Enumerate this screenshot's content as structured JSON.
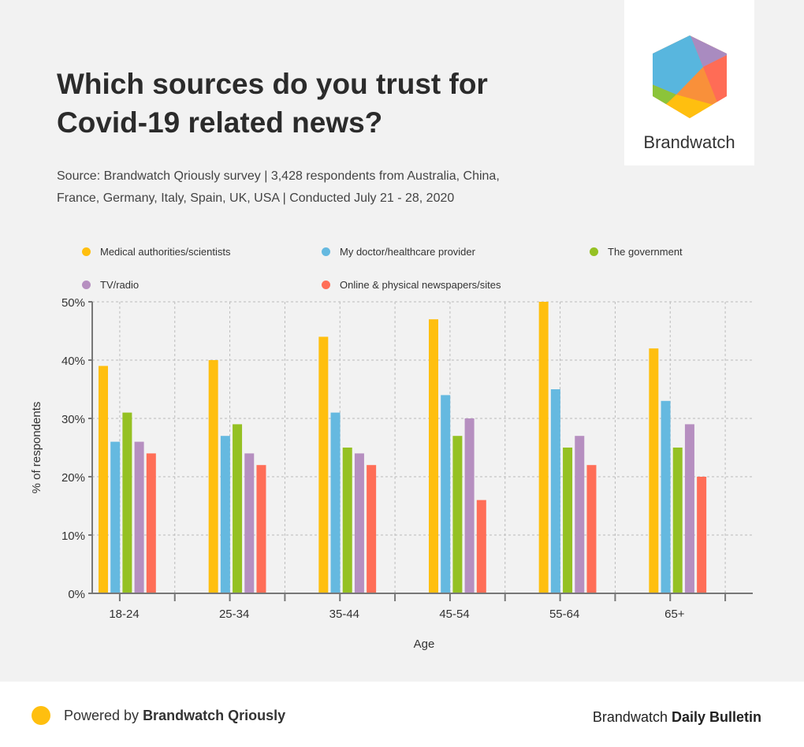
{
  "header": {
    "title": "Which sources do you trust for Covid-19 related news?",
    "source": "Source: Brandwatch Qriously survey | 3,428 respondents from Australia, China, France, Germany, Italy, Spain, UK, USA | Conducted July  21 - 28, 2020",
    "logo_text": "Brandwatch"
  },
  "chart_data": {
    "type": "bar",
    "title": "Which sources do you trust for Covid-19 related news?",
    "xlabel": "Age",
    "ylabel": "% of respondents",
    "ylim": [
      0,
      50
    ],
    "yticks": [
      "0%",
      "10%",
      "20%",
      "30%",
      "40%",
      "50%"
    ],
    "categories": [
      "18-24",
      "25-34",
      "35-44",
      "45-54",
      "55-64",
      "65+"
    ],
    "grid": true,
    "legend_position": "top",
    "series": [
      {
        "name": "Medical authorities/scientists",
        "color": "#ffbf0f",
        "values": [
          39,
          40,
          44,
          47,
          50,
          42
        ]
      },
      {
        "name": "My doctor/healthcare provider",
        "color": "#65b9e0",
        "values": [
          26,
          27,
          31,
          34,
          35,
          33
        ]
      },
      {
        "name": "The government",
        "color": "#95c123",
        "values": [
          31,
          29,
          25,
          27,
          25,
          25
        ]
      },
      {
        "name": "TV/radio",
        "color": "#b68fc0",
        "values": [
          26,
          24,
          24,
          30,
          27,
          29
        ]
      },
      {
        "name": "Online & physical newspapers/sites",
        "color": "#ff6e57",
        "values": [
          24,
          22,
          22,
          16,
          22,
          20
        ]
      }
    ]
  },
  "footer": {
    "powered_prefix": "Powered by ",
    "powered_brand": "Brandwatch Qriously",
    "bulletin_prefix": "Brandwatch ",
    "bulletin_name": "Daily Bulletin"
  }
}
